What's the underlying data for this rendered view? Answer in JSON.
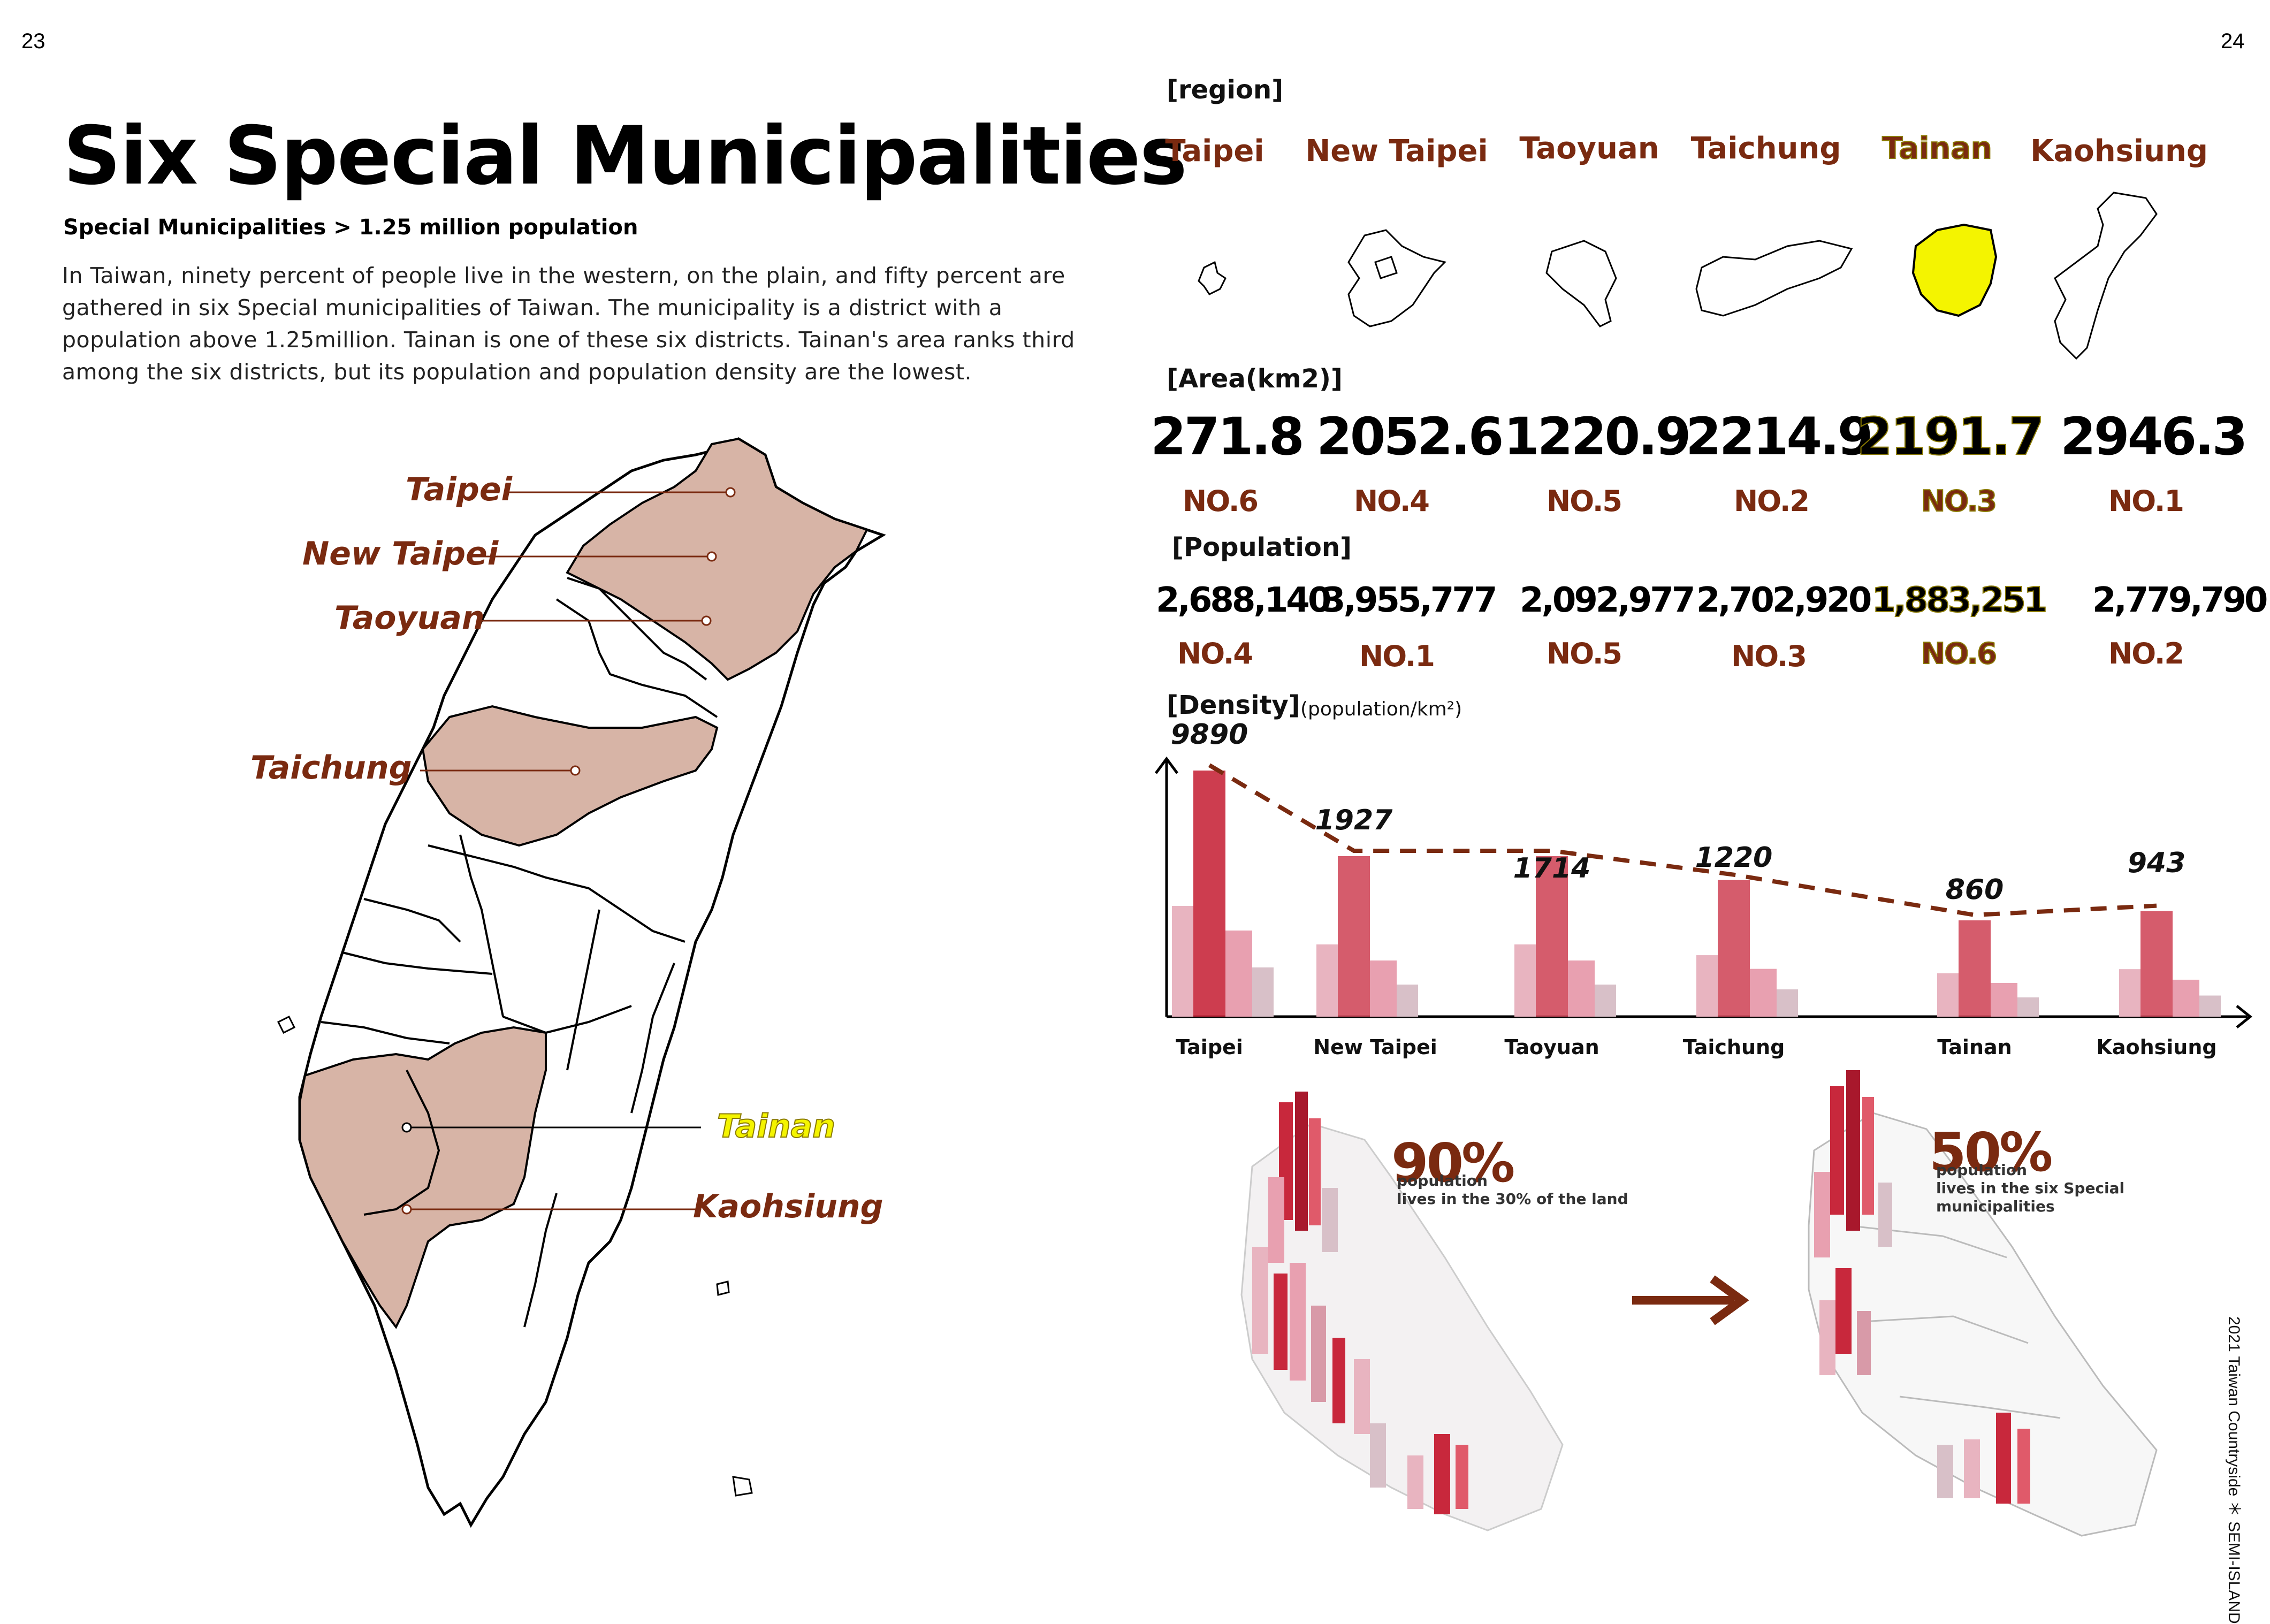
{
  "page": {
    "left_number": "23",
    "right_number": "24",
    "footer_vertical": "2021 Taiwan Countryside ＊ SEMI-ISLAND"
  },
  "header": {
    "title": "Six Special Municipalities",
    "subtitle": "Special Municipalities > 1.25 million population",
    "body": "In Taiwan, ninety percent of people live in the western, on the plain, and fifty percent are gathered in six Special municipalities of Taiwan.  The municipality is a district with a population above 1.25million. Tainan is one of these six districts. Tainan's area ranks third among the six districts, but its population and population density are the lowest."
  },
  "map_labels": [
    "Taipei",
    "New Taipei",
    "Taoyuan",
    "Taichung",
    "Tainan",
    "Kaohsiung"
  ],
  "sections": {
    "region": "[region]",
    "area": "[Area(km2)]",
    "population": "[Population]",
    "density": "[Density]",
    "density_unit": "(population/km²)"
  },
  "regions": [
    {
      "name": "Taipei",
      "area": "271.8",
      "area_rank": "NO.6",
      "population": "2,688,140",
      "pop_rank": "NO.4",
      "density": "9890"
    },
    {
      "name": "New Taipei",
      "area": "2052.6",
      "area_rank": "NO.4",
      "population": "3,955,777",
      "pop_rank": "NO.1",
      "density": "1927"
    },
    {
      "name": "Taoyuan",
      "area": "1220.9",
      "area_rank": "NO.5",
      "population": "2,092,977",
      "pop_rank": "NO.5",
      "density": "1714"
    },
    {
      "name": "Taichung",
      "area": "2214.9",
      "area_rank": "NO.2",
      "population": "2,702,920",
      "pop_rank": "NO.3",
      "density": "1220"
    },
    {
      "name": "Tainan",
      "area": "2191.7",
      "area_rank": "NO.3",
      "population": "1,883,251",
      "pop_rank": "NO.6",
      "density": "860"
    },
    {
      "name": "Kaohsiung",
      "area": "2946.3",
      "area_rank": "NO.1",
      "population": "2,779,790",
      "pop_rank": "NO.2",
      "density": "943"
    }
  ],
  "highlight": "Tainan",
  "colors": {
    "brown": "#7a2a10",
    "highlight": "#f4f400",
    "map_fill": "#d7b4a6",
    "bar_red": "#c8283c",
    "bar_pink": "#e8b4c0"
  },
  "chart_data": {
    "type": "bar",
    "title": "[Density]",
    "ylabel": "(population/km²)",
    "categories": [
      "Taipei",
      "New Taipei",
      "Taoyuan",
      "Taichung",
      "Tainan",
      "Kaohsiung"
    ],
    "values": [
      9890,
      1927,
      1714,
      1220,
      860,
      943
    ]
  },
  "infographic": {
    "left_pct": "90%",
    "left_text": "population\nlives in the 30% of the land",
    "right_pct": "50%",
    "right_text": "population\nlives in the six Special\nmunicipalities"
  }
}
